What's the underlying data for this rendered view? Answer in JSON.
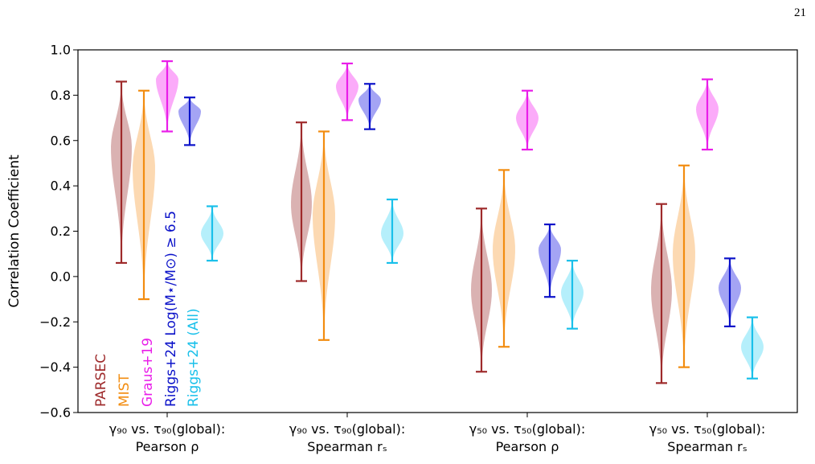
{
  "page_number": "21",
  "chart_data": {
    "type": "violin",
    "ylabel": "Correlation Coefficient",
    "ylim": [
      -0.6,
      1.0
    ],
    "yticks": [
      -0.6,
      -0.4,
      -0.2,
      0.0,
      0.2,
      0.4,
      0.6,
      0.8,
      1.0
    ],
    "ytick_labels": [
      "−0.6",
      "−0.4",
      "−0.2",
      "0.0",
      "0.2",
      "0.4",
      "0.6",
      "0.8",
      "1.0"
    ],
    "groups": [
      {
        "line1": "γ₉₀ vs. τ₉₀(global):",
        "line2": "Pearson ρ"
      },
      {
        "line1": "γ₉₀ vs. τ₉₀(global):",
        "line2": "Spearman rₛ"
      },
      {
        "line1": "γ₅₀ vs. τ₅₀(global):",
        "line2": "Pearson ρ"
      },
      {
        "line1": "γ₅₀ vs. τ₅₀(global):",
        "line2": "Spearman rₛ"
      }
    ],
    "series": [
      {
        "name": "PARSEC",
        "color": "#9e2a2b",
        "fill": "#d4a5a5",
        "violins": [
          {
            "group": 0,
            "min": 0.06,
            "max": 0.86,
            "center": 0.57
          },
          {
            "group": 1,
            "min": -0.02,
            "max": 0.68,
            "center": 0.32
          },
          {
            "group": 2,
            "min": -0.42,
            "max": 0.3,
            "center": -0.06
          },
          {
            "group": 3,
            "min": -0.47,
            "max": 0.32,
            "center": -0.06
          }
        ]
      },
      {
        "name": "MIST",
        "color": "#f28c10",
        "fill": "#fbd2a4",
        "violins": [
          {
            "group": 0,
            "min": -0.1,
            "max": 0.82,
            "center": 0.48
          },
          {
            "group": 1,
            "min": -0.28,
            "max": 0.64,
            "center": 0.27
          },
          {
            "group": 2,
            "min": -0.31,
            "max": 0.47,
            "center": 0.12
          },
          {
            "group": 3,
            "min": -0.4,
            "max": 0.49,
            "center": 0.1
          }
        ]
      },
      {
        "name": "Graus+19",
        "color": "#e91ee9",
        "fill": "#fa9cf8",
        "violins": [
          {
            "group": 0,
            "min": 0.64,
            "max": 0.95,
            "center": 0.87
          },
          {
            "group": 1,
            "min": 0.69,
            "max": 0.94,
            "center": 0.84
          },
          {
            "group": 2,
            "min": 0.56,
            "max": 0.82,
            "center": 0.7
          },
          {
            "group": 3,
            "min": 0.56,
            "max": 0.87,
            "center": 0.74
          }
        ]
      },
      {
        "name": "Riggs+24 Log(M⋆/M⊙) ≥ 6.5",
        "color": "#0b12c9",
        "fill": "#9494f2",
        "violins": [
          {
            "group": 0,
            "min": 0.58,
            "max": 0.79,
            "center": 0.73
          },
          {
            "group": 1,
            "min": 0.65,
            "max": 0.85,
            "center": 0.78
          },
          {
            "group": 2,
            "min": -0.09,
            "max": 0.23,
            "center": 0.12
          },
          {
            "group": 3,
            "min": -0.22,
            "max": 0.08,
            "center": -0.05
          }
        ]
      },
      {
        "name": "Riggs+24 (All)",
        "color": "#19c0ea",
        "fill": "#a8ecfa",
        "violins": [
          {
            "group": 0,
            "min": 0.07,
            "max": 0.31,
            "center": 0.19
          },
          {
            "group": 1,
            "min": 0.06,
            "max": 0.34,
            "center": 0.19
          },
          {
            "group": 2,
            "min": -0.23,
            "max": 0.07,
            "center": -0.07
          },
          {
            "group": 3,
            "min": -0.45,
            "max": -0.18,
            "center": -0.31
          }
        ]
      }
    ],
    "legend": {
      "placement": "bottom-left",
      "orientation": "vertical-rotated"
    }
  }
}
